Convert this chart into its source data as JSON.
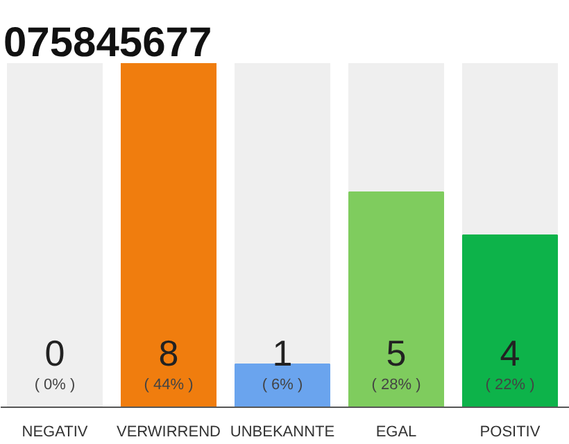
{
  "chart_data": {
    "type": "bar",
    "title": "075845677",
    "categories": [
      "NEGATIV",
      "VERWIRREND",
      "UNBEKANNTE",
      "EGAL",
      "POSITIV"
    ],
    "values": [
      0,
      8,
      1,
      5,
      4
    ],
    "colors": [
      "#e8393b",
      "#f07d0e",
      "#6aa4ee",
      "#7fcc5e",
      "#0db34a"
    ],
    "ylim": [
      0,
      8
    ],
    "tick_labels": "x",
    "data_labels": true,
    "annotations": [
      "( 0% )",
      "( 44% )",
      "( 6% )",
      "( 28% )",
      "( 22% )"
    ]
  }
}
